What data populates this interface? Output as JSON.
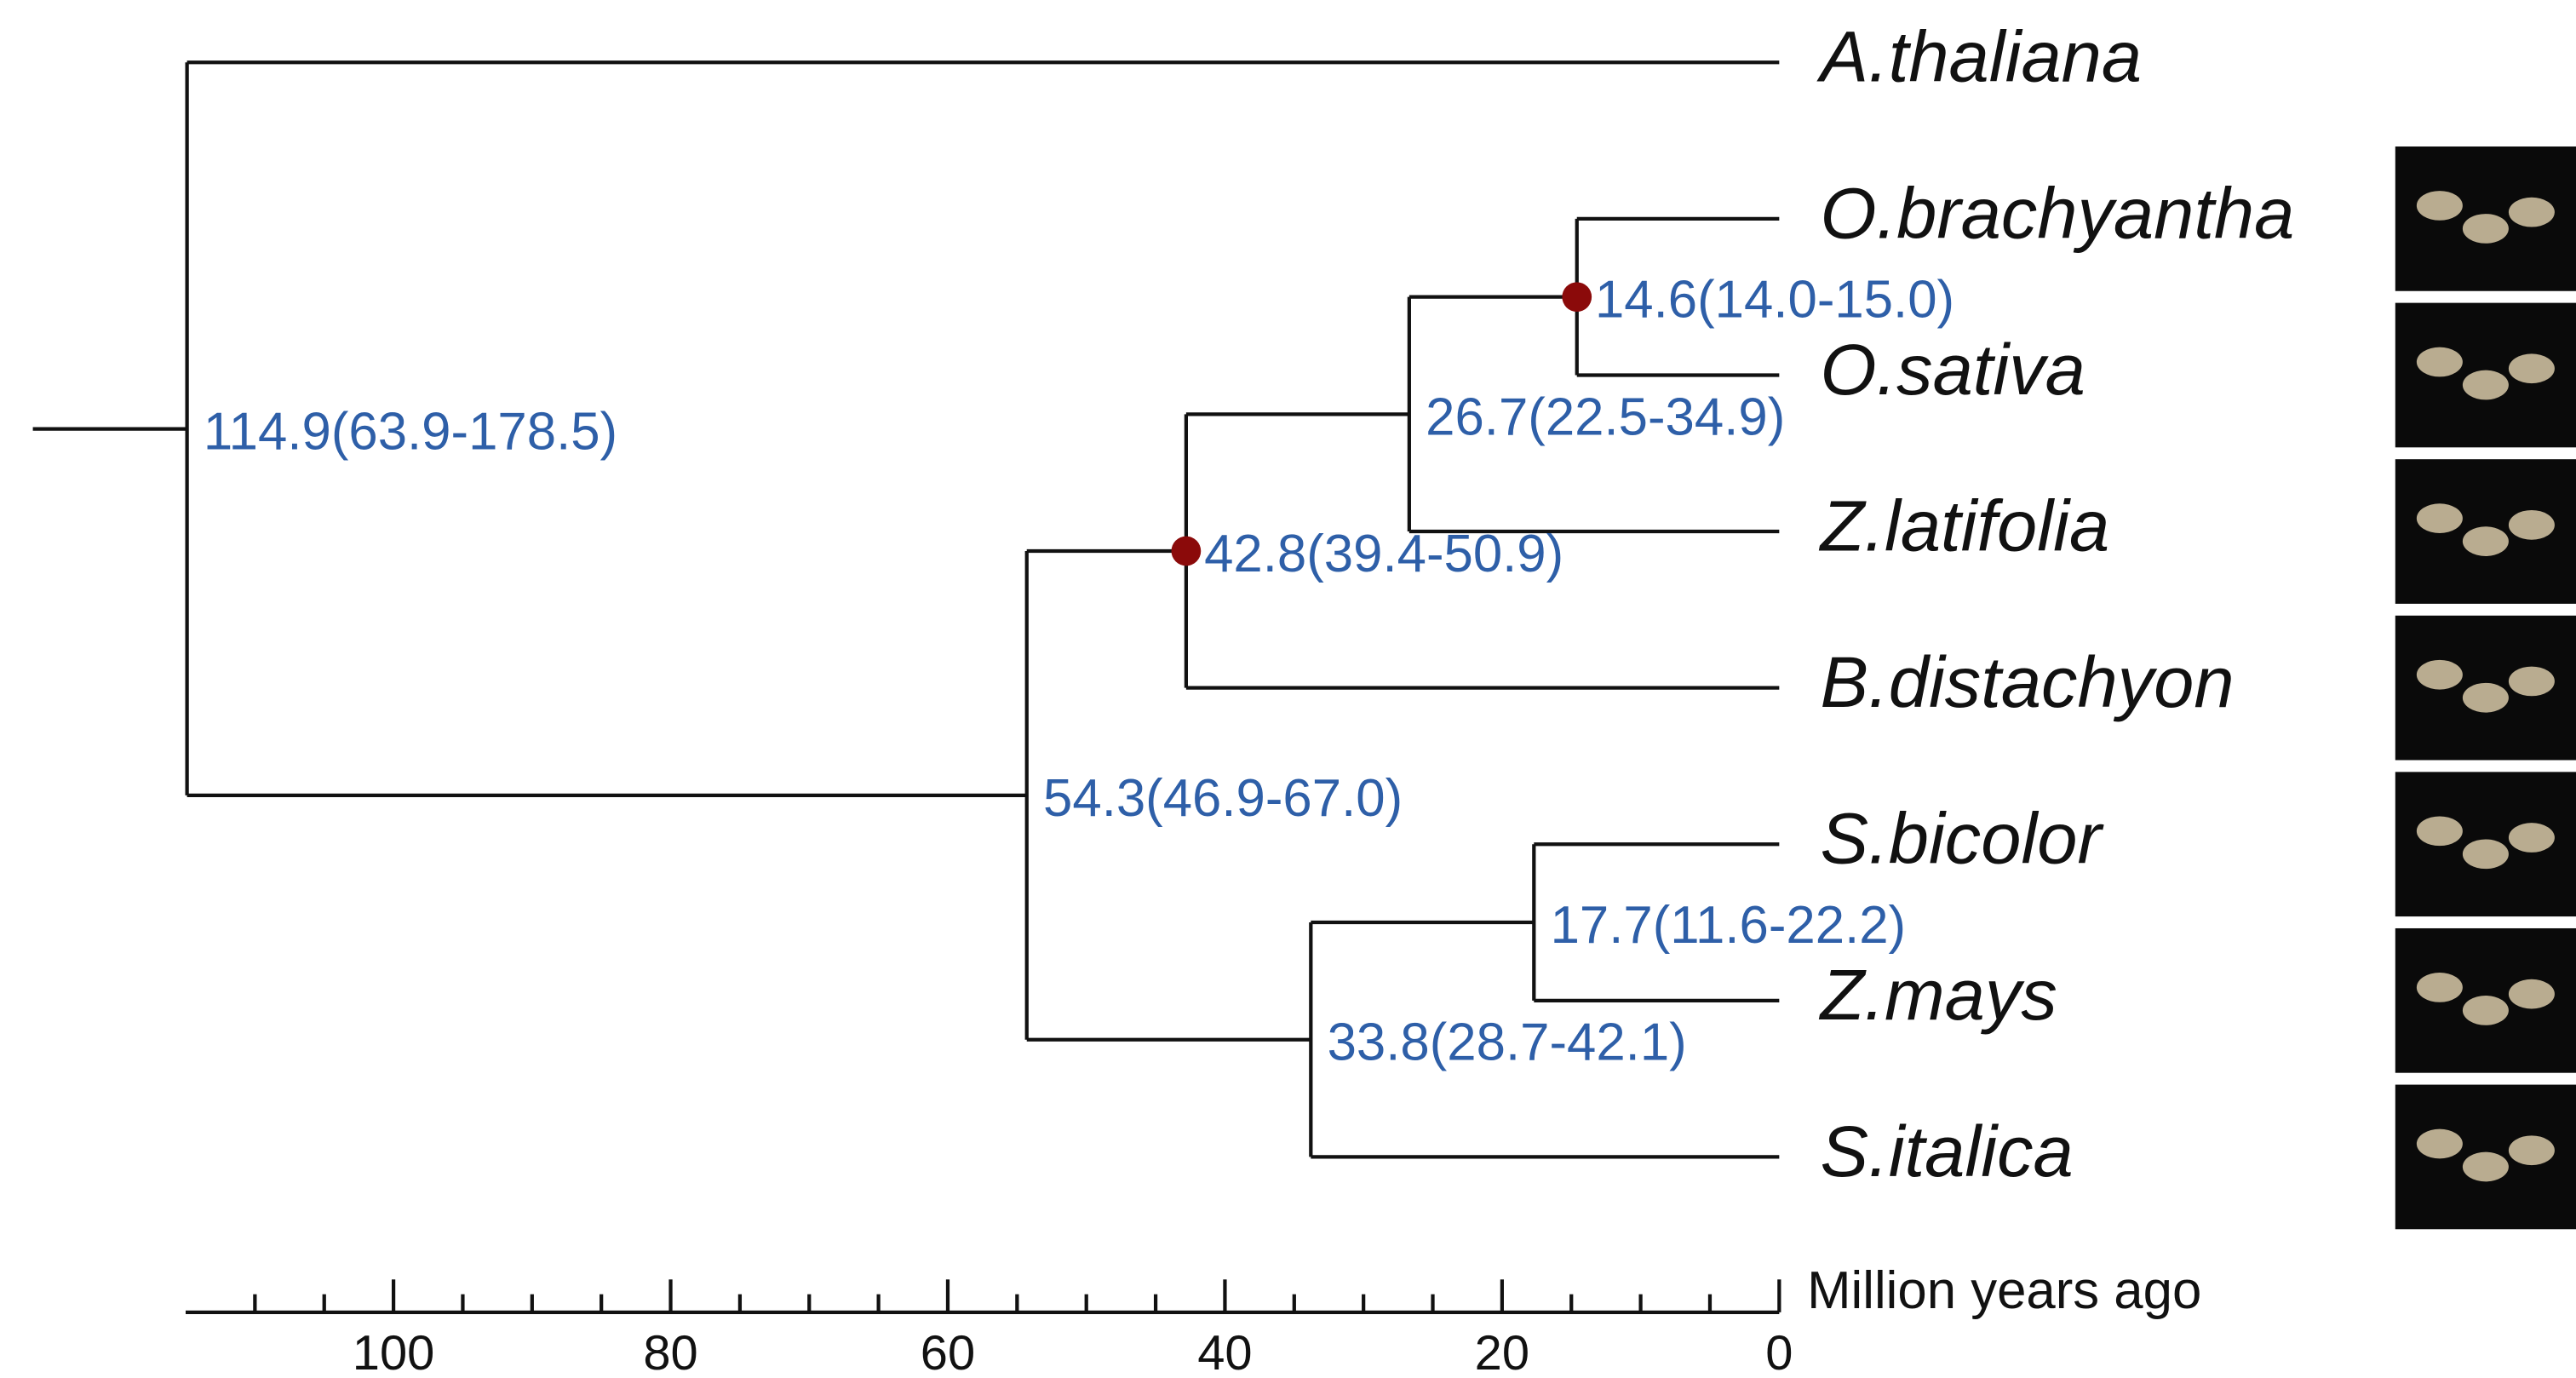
{
  "chart_data": {
    "type": "tree",
    "xlabel": "Million years ago",
    "xlim": [
      115,
      0
    ],
    "xticks": [
      100,
      80,
      60,
      40,
      20,
      0
    ],
    "xminor_ticks": [
      110,
      105,
      95,
      90,
      85,
      75,
      70,
      65,
      55,
      50,
      45,
      35,
      30,
      25,
      15,
      10,
      5
    ],
    "line_color": "#111111",
    "label_color": "#2e5fa8",
    "marker_color": "#8b0a0a",
    "tree": {
      "age": 114.9,
      "label": "114.9(63.9-178.5)",
      "children": [
        {
          "name": "A.thaliana"
        },
        {
          "age": 54.3,
          "label": "54.3(46.9-67.0)",
          "children": [
            {
              "age": 42.8,
              "label": "42.8(39.4-50.9)",
              "calibrated": true,
              "children": [
                {
                  "age": 26.7,
                  "label": "26.7(22.5-34.9)",
                  "children": [
                    {
                      "age": 14.6,
                      "label": "14.6(14.0-15.0)",
                      "calibrated": true,
                      "children": [
                        {
                          "name": "O.brachyantha",
                          "photo": true
                        },
                        {
                          "name": "O.sativa",
                          "photo": true
                        }
                      ]
                    },
                    {
                      "name": "Z.latifolia",
                      "photo": true
                    }
                  ]
                },
                {
                  "name": "B.distachyon",
                  "photo": true
                }
              ]
            },
            {
              "age": 33.8,
              "label": "33.8(28.7-42.1)",
              "children": [
                {
                  "age": 17.7,
                  "label": "17.7(11.6-22.2)",
                  "children": [
                    {
                      "name": "S.bicolor",
                      "photo": true
                    },
                    {
                      "name": "Z.mays",
                      "photo": true
                    }
                  ]
                },
                {
                  "name": "S.italica",
                  "photo": true
                }
              ]
            }
          ]
        }
      ]
    }
  }
}
